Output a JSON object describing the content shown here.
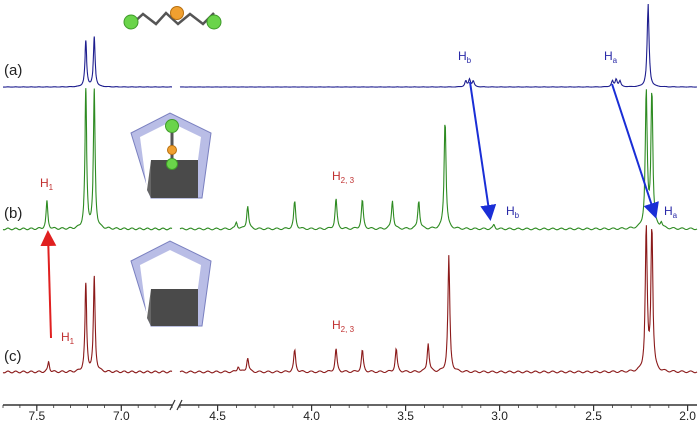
{
  "chart_data": {
    "type": "line",
    "title": "",
    "xlabel": "",
    "ylabel": "",
    "x_reversed": true,
    "axis_break": [
      6.7,
      4.7
    ],
    "x_ticks_left": [
      "7.5",
      "7.0"
    ],
    "x_ticks_right": [
      "4.5",
      "4.0",
      "3.5",
      "3.0",
      "2.5",
      "2.0"
    ],
    "colors": {
      "a": "#1f1f8f",
      "b": "#2e8b22",
      "c": "#8b1a1a",
      "arrow_blue": "#1a2ed6",
      "arrow_red": "#e02020",
      "label_blue": "#2a2aa8",
      "label_red": "#c03030"
    },
    "series": [
      {
        "trace_label": "(a)",
        "color": "#1f1f8f",
        "peaks": [
          [
            7.21,
            0.55
          ],
          [
            7.16,
            0.6
          ],
          [
            3.18,
            0.07
          ],
          [
            3.16,
            0.09
          ],
          [
            3.14,
            0.07
          ],
          [
            2.4,
            0.07
          ],
          [
            2.38,
            0.09
          ],
          [
            2.36,
            0.07
          ],
          [
            2.21,
            1.0
          ]
        ]
      },
      {
        "trace_label": "(b)",
        "color": "#2e8b22",
        "peaks": [
          [
            7.44,
            0.2
          ],
          [
            7.21,
            1.0
          ],
          [
            7.16,
            1.0
          ],
          [
            4.4,
            0.05
          ],
          [
            4.34,
            0.17
          ],
          [
            4.09,
            0.2
          ],
          [
            3.87,
            0.22
          ],
          [
            3.73,
            0.21
          ],
          [
            3.57,
            0.21
          ],
          [
            3.43,
            0.21
          ],
          [
            3.29,
            0.8
          ],
          [
            3.03,
            0.03
          ],
          [
            2.22,
            1.0
          ],
          [
            2.19,
            1.0
          ],
          [
            2.14,
            0.04
          ]
        ]
      },
      {
        "trace_label": "(c)",
        "color": "#8b1a1a",
        "peaks": [
          [
            7.43,
            0.07
          ],
          [
            7.21,
            0.6
          ],
          [
            7.16,
            0.65
          ],
          [
            4.39,
            0.04
          ],
          [
            4.34,
            0.1
          ],
          [
            4.09,
            0.15
          ],
          [
            3.87,
            0.16
          ],
          [
            3.73,
            0.15
          ],
          [
            3.55,
            0.16
          ],
          [
            3.38,
            0.2
          ],
          [
            3.27,
            0.8
          ],
          [
            2.22,
            1.0
          ],
          [
            2.19,
            1.0
          ]
        ]
      }
    ],
    "annotations": [
      {
        "id": "ha_a",
        "main": "H",
        "sub": "a"
      },
      {
        "id": "hb_a",
        "main": "H",
        "sub": "b"
      },
      {
        "id": "ha_b",
        "main": "H",
        "sub": "a"
      },
      {
        "id": "hb_b",
        "main": "H",
        "sub": "b"
      },
      {
        "id": "h1_b",
        "main": "H",
        "sub": "1"
      },
      {
        "id": "h23_b",
        "main": "H",
        "sub": "2, 3"
      },
      {
        "id": "h1_c",
        "main": "H",
        "sub": "1"
      },
      {
        "id": "h23_c",
        "main": "H",
        "sub": "2, 3"
      }
    ]
  }
}
